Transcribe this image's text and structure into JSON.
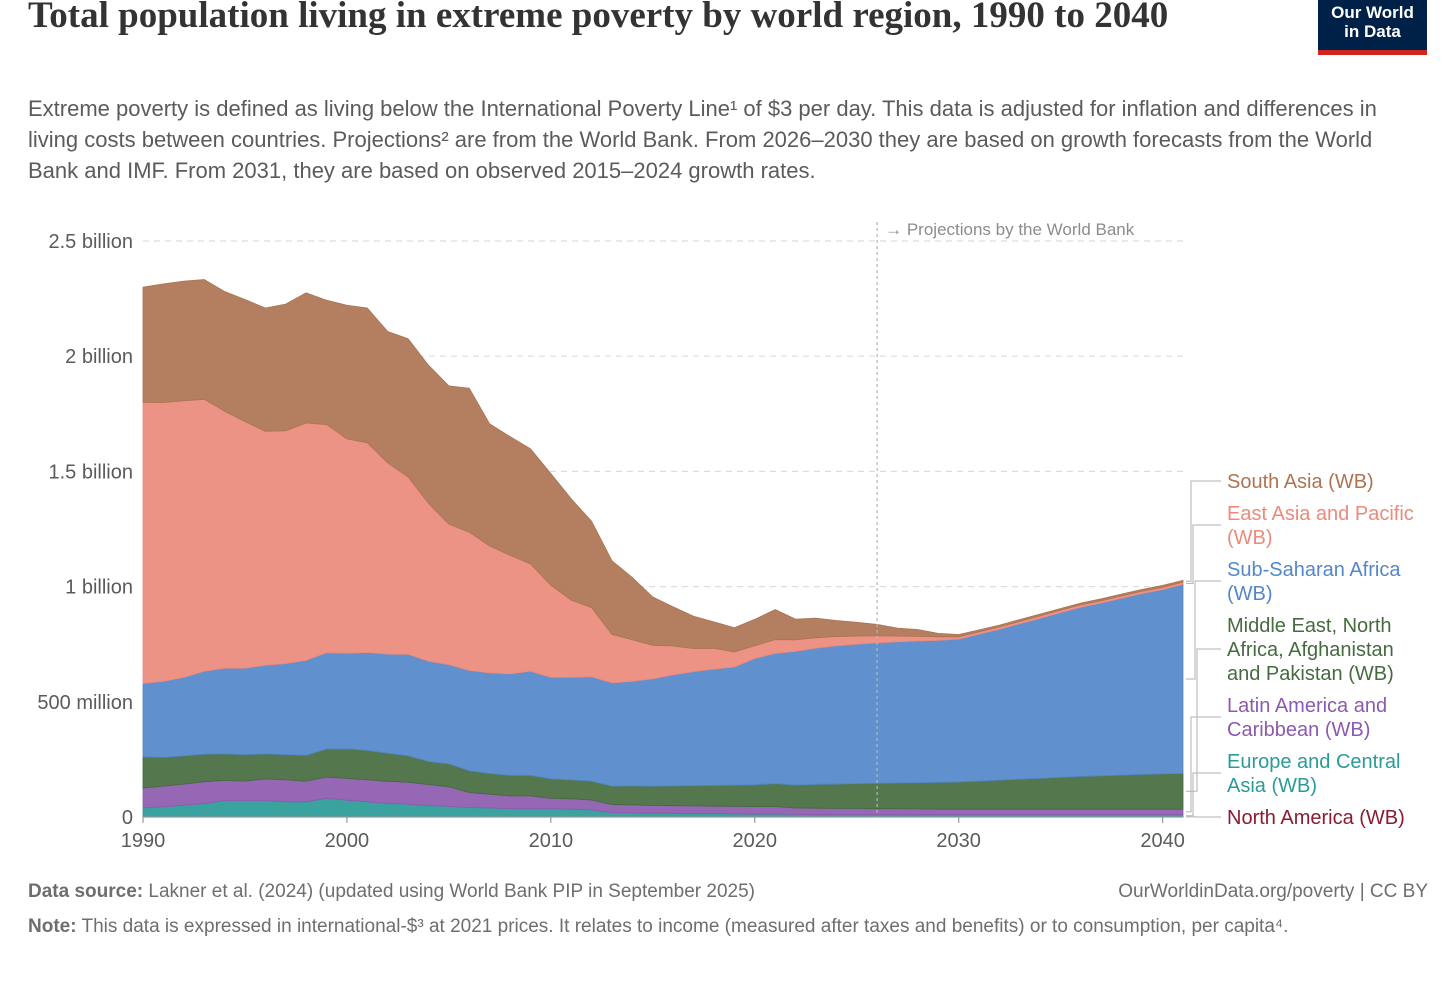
{
  "header": {
    "title": "Total population living in extreme poverty by world region, 1990 to 2040",
    "subtitle": "Extreme poverty is defined as living below the International Poverty Line¹ of $3 per day. This data is adjusted for inflation and differences in living costs between countries. Projections² are from the World Bank. From 2026–2030 they are based on growth forecasts from the World Bank and IMF. From 2031, they are based on observed 2015–2024 growth rates.",
    "logo_line1": "Our World",
    "logo_line2": "in Data"
  },
  "footer": {
    "source_label": "Data source:",
    "source_text": "Lakner et al. (2024) (updated using World Bank PIP in September 2025)",
    "url": "OurWorldinData.org/poverty | CC BY",
    "note_label": "Note:",
    "note_text": "This data is expressed in international-$³ at 2021 prices. It relates to income (measured after taxes and benefits) or to consumption, per capita⁴."
  },
  "colors": {
    "north_america": "#8a1b33",
    "europe_central_asia": "#2a9b97",
    "latin_america": "#8c5aae",
    "mena": "#456b3f",
    "ssa": "#5387c9",
    "east_asia": "#ec8a7b",
    "south_asia": "#ad7452"
  },
  "chart_data": {
    "type": "area",
    "stacked": true,
    "xlim": [
      1990,
      2041
    ],
    "ylim": [
      0,
      2500000000
    ],
    "x_ticks": [
      1990,
      2000,
      2010,
      2020,
      2030,
      2040
    ],
    "y_ticks": [
      {
        "value": 0,
        "label": "0"
      },
      {
        "value": 500000000,
        "label": "500 million"
      },
      {
        "value": 1000000000,
        "label": "1 billion"
      },
      {
        "value": 1500000000,
        "label": "1.5 billion"
      },
      {
        "value": 2000000000,
        "label": "2 billion"
      },
      {
        "value": 2500000000,
        "label": "2.5 billion"
      }
    ],
    "grid": "horizontal dashed",
    "projection_start": 2026,
    "projection_label": "→ Projections by the World Bank",
    "x": [
      1990,
      1991,
      1992,
      1993,
      1994,
      1995,
      1996,
      1997,
      1998,
      1999,
      2000,
      2001,
      2002,
      2003,
      2004,
      2005,
      2006,
      2007,
      2008,
      2009,
      2010,
      2011,
      2012,
      2013,
      2014,
      2015,
      2016,
      2017,
      2018,
      2019,
      2020,
      2021,
      2022,
      2023,
      2024,
      2025,
      2026,
      2027,
      2028,
      2029,
      2030,
      2031,
      2032,
      2033,
      2034,
      2035,
      2036,
      2037,
      2038,
      2039,
      2040,
      2041
    ],
    "series": [
      {
        "name": "North America (WB)",
        "color_key": "north_america",
        "values": [
          1,
          1,
          1,
          1,
          1,
          1,
          1,
          1,
          1,
          1,
          1,
          1,
          1,
          1,
          1,
          1,
          1,
          1,
          1,
          1,
          1,
          1,
          1,
          1,
          1,
          1,
          1,
          1,
          1,
          1,
          1,
          1,
          1,
          1,
          1,
          1,
          1,
          1,
          1,
          1,
          1,
          1,
          1,
          1,
          1,
          1,
          1,
          1,
          1,
          1,
          1,
          1
        ]
      },
      {
        "name": "Europe and Central Asia (WB)",
        "color_key": "europe_central_asia",
        "values": [
          38,
          43,
          50,
          57,
          70,
          70,
          70,
          65,
          65,
          80,
          72,
          65,
          57,
          55,
          48,
          45,
          40,
          38,
          35,
          35,
          35,
          33,
          30,
          18,
          17,
          16,
          15,
          14,
          14,
          13,
          11,
          12,
          10,
          9,
          9,
          9,
          9,
          9,
          9,
          9,
          9,
          9,
          9,
          9,
          9,
          9,
          9,
          9,
          9,
          9,
          9,
          9
        ]
      },
      {
        "name": "Latin America and Caribbean (WB)",
        "color_key": "latin_america",
        "values": [
          87,
          90,
          92,
          95,
          88,
          85,
          95,
          95,
          90,
          92,
          95,
          95,
          97,
          95,
          92,
          85,
          65,
          60,
          55,
          55,
          45,
          45,
          43,
          35,
          35,
          33,
          33,
          33,
          32,
          32,
          33,
          32,
          28,
          28,
          27,
          27,
          26,
          26,
          25,
          24,
          24,
          24,
          24,
          24,
          24,
          24,
          24,
          24,
          24,
          24,
          24,
          24
        ]
      },
      {
        "name": "Middle East, North Africa, Afghanistan and Pakistan (WB)",
        "color_key": "mena",
        "values": [
          135,
          125,
          122,
          120,
          115,
          115,
          108,
          110,
          112,
          122,
          128,
          128,
          122,
          115,
          100,
          100,
          95,
          90,
          90,
          90,
          85,
          82,
          82,
          80,
          82,
          84,
          86,
          88,
          90,
          92,
          95,
          100,
          100,
          104,
          106,
          108,
          110,
          112,
          114,
          116,
          118,
          122,
          126,
          130,
          134,
          138,
          142,
          145,
          148,
          151,
          153,
          155
        ]
      },
      {
        "name": "Sub-Saharan Africa (WB)",
        "color_key": "ssa",
        "values": [
          319,
          330,
          341,
          360,
          372,
          375,
          385,
          395,
          412,
          418,
          415,
          425,
          430,
          440,
          435,
          430,
          435,
          437,
          440,
          452,
          440,
          445,
          453,
          448,
          454,
          466,
          482,
          495,
          505,
          513,
          548,
          565,
          580,
          591,
          600,
          605,
          610,
          612,
          615,
          617,
          620,
          638,
          655,
          675,
          695,
          715,
          735,
          750,
          768,
          785,
          800,
          820
        ]
      },
      {
        "name": "East Asia and Pacific (WB)",
        "color_key": "east_asia",
        "values": [
          1220,
          1210,
          1200,
          1180,
          1115,
          1070,
          1015,
          1010,
          1030,
          990,
          930,
          910,
          830,
          770,
          685,
          610,
          600,
          550,
          515,
          465,
          400,
          335,
          300,
          210,
          180,
          145,
          125,
          100,
          90,
          65,
          55,
          60,
          50,
          45,
          40,
          35,
          30,
          25,
          20,
          15,
          10,
          10,
          10,
          10,
          10,
          10,
          10,
          10,
          10,
          10,
          10,
          10
        ]
      },
      {
        "name": "South Asia (WB)",
        "color_key": "south_asia",
        "values": [
          500,
          515,
          520,
          520,
          520,
          530,
          535,
          550,
          565,
          540,
          580,
          585,
          570,
          600,
          600,
          600,
          625,
          530,
          515,
          500,
          485,
          440,
          375,
          320,
          270,
          210,
          170,
          140,
          115,
          105,
          115,
          130,
          90,
          85,
          70,
          60,
          50,
          35,
          30,
          15,
          10,
          8,
          8,
          8,
          8,
          8,
          8,
          8,
          8,
          8,
          8,
          8
        ]
      }
    ],
    "units_note": "values in millions of people"
  }
}
